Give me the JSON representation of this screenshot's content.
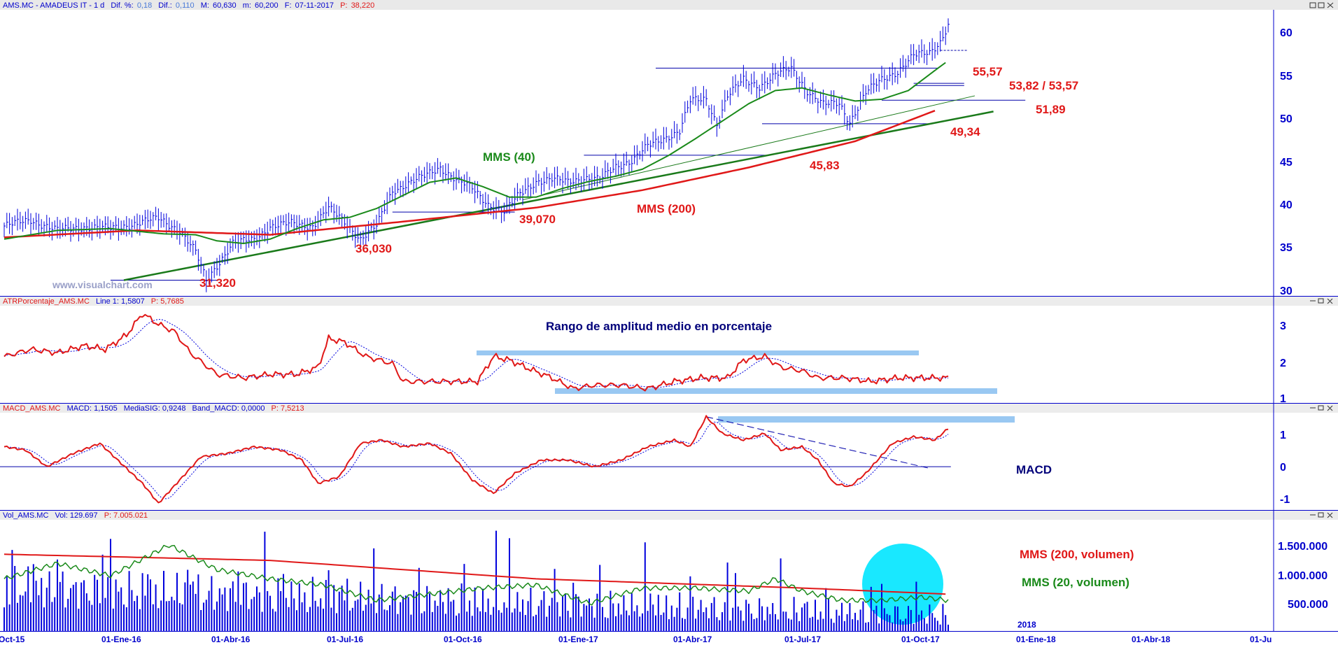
{
  "colors": {
    "price": "#0000dd",
    "sma40": "#1a8a1a",
    "sma200": "#e01818",
    "trend": "#1a7a1a",
    "level": "#0000aa",
    "annotation_red": "#e01818",
    "annotation_navy": "#00007a",
    "band": "#99c8f2",
    "axis": "#0000cc",
    "header_red": "#e01818",
    "highlight": "#00e5ff"
  },
  "header": {
    "symbol": "AMS.MC - AMADEUS IT - 1 d",
    "dif_pct_label": "Dif. %:",
    "dif_pct": "0,18",
    "dif_label": "Dif.:",
    "dif": "0,110",
    "max_label": "M:",
    "max": "60,630",
    "min_label": "m:",
    "min": "60,200",
    "date_label": "F:",
    "date": "07-11-2017",
    "p_label": "P:",
    "p": "38,220"
  },
  "panels": {
    "atr": {
      "title": "ATRPorcentaje_AMS.MC",
      "line": "Line 1: 1,5807",
      "p": "P: 5,7685"
    },
    "macd": {
      "title": "MACD_AMS.MC",
      "macd": "MACD: 1,1505",
      "sig": "MediaSIG: 0,9248",
      "band": "Band_MACD: 0,0000",
      "p": "P: 7,5213"
    },
    "vol": {
      "title": "Vol_AMS.MC",
      "vol": "Vol: 129.697",
      "p": "P: 7.005.021"
    }
  },
  "watermark": "www.visualchart.com",
  "x_axis": {
    "labels": [
      "Oct-15",
      "01-Ene-16",
      "01-Abr-16",
      "01-Jul-16",
      "01-Oct-16",
      "01-Ene-17",
      "01-Abr-17",
      "01-Jul-17",
      "01-Oct-17",
      "01-Ene-18",
      "01-Abr-18",
      "01-Ju"
    ],
    "year_marker": "2018"
  },
  "chart_data": [
    {
      "type": "line",
      "name": "price",
      "x_labels": [
        "Oct-15",
        "01-Ene-16",
        "01-Abr-16",
        "01-Jul-16",
        "01-Oct-16",
        "01-Ene-17",
        "01-Abr-17",
        "01-Jul-17",
        "01-Oct-17"
      ],
      "y_ticks": [
        "60",
        "55",
        "50",
        "45",
        "40",
        "35",
        "30"
      ],
      "ylim": [
        29.5,
        62
      ],
      "price": [
        [
          0,
          37.5
        ],
        [
          10,
          38.2
        ],
        [
          20,
          37.0
        ],
        [
          30,
          37.4
        ],
        [
          40,
          37.2
        ],
        [
          50,
          37.8
        ],
        [
          58,
          38.4
        ],
        [
          66,
          37.0
        ],
        [
          72,
          34.5
        ],
        [
          76,
          31.3
        ],
        [
          80,
          33.0
        ],
        [
          86,
          35.5
        ],
        [
          94,
          36.0
        ],
        [
          100,
          37.4
        ],
        [
          108,
          37.8
        ],
        [
          116,
          37.5
        ],
        [
          122,
          39.5
        ],
        [
          128,
          38.0
        ],
        [
          134,
          36.0
        ],
        [
          140,
          37.5
        ],
        [
          146,
          41.5
        ],
        [
          152,
          42.4
        ],
        [
          158,
          43.2
        ],
        [
          164,
          44.2
        ],
        [
          170,
          42.8
        ],
        [
          176,
          41.8
        ],
        [
          182,
          40.0
        ],
        [
          188,
          39.1
        ],
        [
          194,
          41.2
        ],
        [
          200,
          42.6
        ],
        [
          206,
          42.8
        ],
        [
          212,
          42.6
        ],
        [
          218,
          43.0
        ],
        [
          224,
          42.8
        ],
        [
          230,
          44.3
        ],
        [
          236,
          45.0
        ],
        [
          242,
          46.6
        ],
        [
          248,
          47.5
        ],
        [
          254,
          48.4
        ],
        [
          258,
          51.8
        ],
        [
          264,
          52.0
        ],
        [
          268,
          49.2
        ],
        [
          272,
          52.4
        ],
        [
          278,
          54.2
        ],
        [
          284,
          53.5
        ],
        [
          290,
          54.8
        ],
        [
          296,
          55.5
        ],
        [
          302,
          53.0
        ],
        [
          308,
          51.4
        ],
        [
          314,
          51.5
        ],
        [
          318,
          49.4
        ],
        [
          324,
          52.8
        ],
        [
          330,
          54.2
        ],
        [
          336,
          55.2
        ],
        [
          342,
          57.0
        ],
        [
          348,
          57.3
        ],
        [
          352,
          58.6
        ],
        [
          355,
          60.6
        ]
      ],
      "sma40": [
        [
          0,
          36.0
        ],
        [
          20,
          37.0
        ],
        [
          40,
          37.2
        ],
        [
          60,
          36.6
        ],
        [
          72,
          36.5
        ],
        [
          80,
          35.8
        ],
        [
          90,
          35.5
        ],
        [
          100,
          36.0
        ],
        [
          110,
          37.2
        ],
        [
          120,
          38.2
        ],
        [
          130,
          38.5
        ],
        [
          140,
          39.5
        ],
        [
          150,
          41.0
        ],
        [
          160,
          42.5
        ],
        [
          170,
          43.0
        ],
        [
          180,
          42.0
        ],
        [
          190,
          40.8
        ],
        [
          200,
          40.8
        ],
        [
          210,
          41.8
        ],
        [
          220,
          42.6
        ],
        [
          230,
          43.2
        ],
        [
          240,
          44.0
        ],
        [
          250,
          45.6
        ],
        [
          260,
          47.5
        ],
        [
          270,
          49.5
        ],
        [
          280,
          51.5
        ],
        [
          290,
          53.0
        ],
        [
          300,
          53.3
        ],
        [
          310,
          52.5
        ],
        [
          320,
          51.8
        ],
        [
          330,
          52.0
        ],
        [
          340,
          53.0
        ],
        [
          350,
          55.3
        ],
        [
          354,
          56.2
        ]
      ],
      "sma200": [
        [
          0,
          36.2
        ],
        [
          50,
          37.0
        ],
        [
          100,
          36.5
        ],
        [
          150,
          38.0
        ],
        [
          200,
          39.6
        ],
        [
          240,
          41.6
        ],
        [
          280,
          44.2
        ],
        [
          320,
          47.2
        ],
        [
          350,
          50.7
        ]
      ],
      "levels": [
        "31,320",
        "36,030",
        "39,070",
        "45,83",
        "49,34",
        "51,89",
        "53,82 / 53,57",
        "55,57"
      ],
      "labels": [
        "MMS (40)",
        "MMS (200)"
      ]
    },
    {
      "type": "line",
      "name": "atr_pct",
      "y_ticks": [
        "3",
        "2",
        "1"
      ],
      "ylim": [
        0.9,
        3.6
      ],
      "values": [
        [
          0,
          2.2
        ],
        [
          10,
          2.4
        ],
        [
          20,
          2.3
        ],
        [
          30,
          2.5
        ],
        [
          38,
          2.4
        ],
        [
          46,
          2.8
        ],
        [
          52,
          3.4
        ],
        [
          58,
          3.1
        ],
        [
          64,
          2.9
        ],
        [
          70,
          2.3
        ],
        [
          80,
          1.7
        ],
        [
          90,
          1.6
        ],
        [
          100,
          1.7
        ],
        [
          110,
          1.7
        ],
        [
          118,
          1.9
        ],
        [
          122,
          2.7
        ],
        [
          128,
          2.6
        ],
        [
          136,
          2.2
        ],
        [
          146,
          2.0
        ],
        [
          150,
          1.5
        ],
        [
          160,
          1.5
        ],
        [
          170,
          1.5
        ],
        [
          178,
          1.5
        ],
        [
          184,
          2.2
        ],
        [
          190,
          2.1
        ],
        [
          196,
          1.9
        ],
        [
          206,
          1.6
        ],
        [
          214,
          1.3
        ],
        [
          222,
          1.4
        ],
        [
          232,
          1.4
        ],
        [
          242,
          1.3
        ],
        [
          252,
          1.5
        ],
        [
          262,
          1.6
        ],
        [
          272,
          1.6
        ],
        [
          278,
          2.1
        ],
        [
          286,
          2.2
        ],
        [
          292,
          1.9
        ],
        [
          300,
          1.8
        ],
        [
          306,
          1.6
        ],
        [
          316,
          1.6
        ],
        [
          326,
          1.5
        ],
        [
          336,
          1.6
        ],
        [
          346,
          1.6
        ],
        [
          355,
          1.6
        ]
      ],
      "title": "Rango de amplitud medio en porcentaje"
    },
    {
      "type": "line",
      "name": "macd",
      "y_ticks": [
        "1",
        "0",
        "-1"
      ],
      "ylim": [
        -1.3,
        1.6
      ],
      "macd": [
        [
          0,
          0.6
        ],
        [
          8,
          0.5
        ],
        [
          16,
          0.0
        ],
        [
          26,
          0.4
        ],
        [
          36,
          0.7
        ],
        [
          44,
          0.1
        ],
        [
          52,
          -0.5
        ],
        [
          58,
          -1.1
        ],
        [
          66,
          -0.4
        ],
        [
          74,
          0.3
        ],
        [
          84,
          0.4
        ],
        [
          94,
          0.6
        ],
        [
          104,
          0.5
        ],
        [
          112,
          0.2
        ],
        [
          118,
          -0.5
        ],
        [
          126,
          -0.3
        ],
        [
          134,
          0.7
        ],
        [
          142,
          0.8
        ],
        [
          150,
          0.6
        ],
        [
          160,
          0.7
        ],
        [
          168,
          0.4
        ],
        [
          176,
          -0.4
        ],
        [
          184,
          -0.8
        ],
        [
          192,
          -0.2
        ],
        [
          202,
          0.2
        ],
        [
          212,
          0.2
        ],
        [
          222,
          0.0
        ],
        [
          232,
          0.2
        ],
        [
          242,
          0.6
        ],
        [
          252,
          0.8
        ],
        [
          258,
          0.6
        ],
        [
          264,
          1.5
        ],
        [
          270,
          1.0
        ],
        [
          278,
          0.8
        ],
        [
          286,
          1.0
        ],
        [
          292,
          0.5
        ],
        [
          300,
          0.6
        ],
        [
          306,
          0.2
        ],
        [
          312,
          -0.5
        ],
        [
          318,
          -0.6
        ],
        [
          324,
          -0.2
        ],
        [
          334,
          0.7
        ],
        [
          342,
          0.9
        ],
        [
          350,
          0.8
        ],
        [
          355,
          1.15
        ]
      ],
      "label": "MACD"
    },
    {
      "type": "bar",
      "name": "volume",
      "y_ticks": [
        "1.500.000",
        "1.000.000",
        "500.000"
      ],
      "ylim": [
        200000,
        2000000
      ],
      "sma200_vol": [
        [
          0,
          1450000
        ],
        [
          100,
          1350000
        ],
        [
          200,
          1050000
        ],
        [
          300,
          900000
        ],
        [
          355,
          800000
        ]
      ],
      "sma20_vol": [
        [
          0,
          1050000
        ],
        [
          20,
          1300000
        ],
        [
          40,
          1100000
        ],
        [
          62,
          1600000
        ],
        [
          80,
          1200000
        ],
        [
          100,
          1050000
        ],
        [
          120,
          950000
        ],
        [
          140,
          700000
        ],
        [
          160,
          800000
        ],
        [
          180,
          900000
        ],
        [
          200,
          950000
        ],
        [
          220,
          650000
        ],
        [
          240,
          900000
        ],
        [
          260,
          900000
        ],
        [
          280,
          850000
        ],
        [
          290,
          1050000
        ],
        [
          300,
          850000
        ],
        [
          315,
          700000
        ],
        [
          330,
          700000
        ],
        [
          345,
          750000
        ],
        [
          355,
          700000
        ]
      ],
      "labels": [
        "MMS (200, volumen)",
        "MMS (20, volumen)"
      ]
    }
  ]
}
